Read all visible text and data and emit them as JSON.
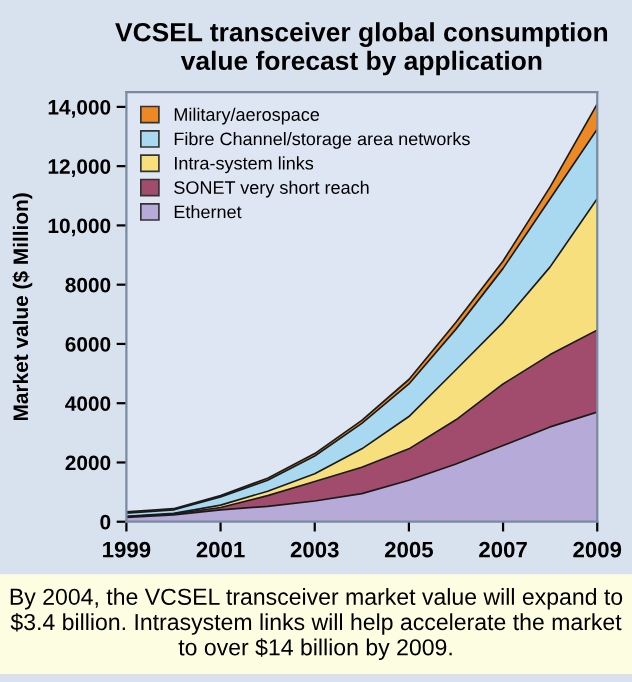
{
  "chart_data": {
    "type": "area",
    "stacked": true,
    "title": "VCSEL transceiver global consumption\nvalue forecast by application",
    "ylabel": "Market value ($ Million)",
    "x": [
      1999,
      2000,
      2001,
      2002,
      2003,
      2004,
      2005,
      2006,
      2007,
      2008,
      2009
    ],
    "series": [
      {
        "name": "Ethernet",
        "color": "#b5aad8",
        "values": [
          150,
          230,
          400,
          520,
          700,
          950,
          1400,
          1950,
          2570,
          3200,
          3700
        ]
      },
      {
        "name": "SONET very short reach",
        "color": "#a24c6d",
        "values": [
          20,
          30,
          80,
          360,
          660,
          890,
          1060,
          1490,
          2080,
          2440,
          2770
        ]
      },
      {
        "name": "Intra-system links",
        "color": "#f6df7c",
        "values": [
          10,
          20,
          80,
          150,
          260,
          620,
          1090,
          1690,
          2080,
          2960,
          4430
        ]
      },
      {
        "name": "Fibre Channel/storage area networks",
        "color": "#a8d9f1",
        "values": [
          110,
          120,
          280,
          370,
          600,
          860,
          1100,
          1370,
          1820,
          2300,
          2350
        ]
      },
      {
        "name": "Military/aerospace",
        "color": "#ec8924",
        "values": [
          40,
          40,
          40,
          70,
          80,
          100,
          150,
          230,
          250,
          400,
          850
        ]
      }
    ],
    "xlim": [
      1999,
      2009
    ],
    "xticks": [
      1999,
      2001,
      2003,
      2005,
      2007,
      2009
    ],
    "ylim": [
      0,
      14500
    ],
    "yticks": [
      0,
      2000,
      4000,
      6000,
      8000,
      {
        "value": 10000,
        "label": "10,000"
      },
      {
        "value": 12000,
        "label": "12,000"
      },
      {
        "value": 14000,
        "label": "14,000"
      }
    ],
    "grid": false,
    "legend": "top left",
    "annotations": [
      "By 2004, the VCSEL transceiver market value will expand to $3.4 billion. Intrasystem links will help accelerate the market to over $14 billion by 2009."
    ]
  }
}
